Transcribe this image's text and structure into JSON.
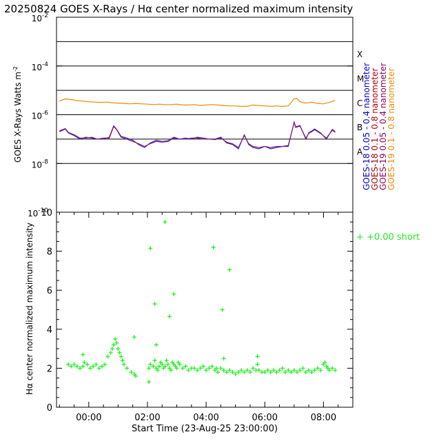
{
  "chart_data": [
    {
      "type": "line",
      "title": "20250824 GOES X-Rays / Hα center normalized maximum intensity",
      "ylabel": "GOES X-Rays Watts m",
      "ylabel_sup": "-2",
      "yscale": "log",
      "ylim": [
        1e-10,
        0.01
      ],
      "xlim": [
        -1.1,
        9.0
      ],
      "yticks": [
        {
          "label": "10",
          "sup": "-10",
          "value": 1e-10
        },
        {
          "label": "10",
          "sup": "-8",
          "value": 1e-08
        },
        {
          "label": "10",
          "sup": "-6",
          "value": 1e-06
        },
        {
          "label": "10",
          "sup": "-4",
          "value": 0.0001
        },
        {
          "label": "10",
          "sup": "-2",
          "value": 0.01
        }
      ],
      "class_lines": [
        1e-07,
        1e-06,
        1e-05,
        0.0001,
        0.001,
        1e-08
      ],
      "class_labels": [
        {
          "label": "A",
          "value": 3.16e-08
        },
        {
          "label": "B",
          "value": 3.16e-07
        },
        {
          "label": "C",
          "value": 3.16e-06
        },
        {
          "label": "M",
          "value": 3.16e-05
        },
        {
          "label": "X",
          "value": 0.000316
        }
      ],
      "legend": [
        {
          "text": "GOES-18  0.05 - 0.4 nanometer",
          "color": "#0000cc"
        },
        {
          "text": "GOES-18  0.1 - 0.8 nanometer",
          "color": "#aa0000"
        },
        {
          "text": "GOES-19  0.05 - 0.4 nanometer",
          "color": "#880066"
        },
        {
          "text": "GOES-19  0.1 - 0.8 nanometer",
          "color": "#ee8800"
        }
      ],
      "series": [
        {
          "name": "GOES-19 0.1 - 0.8 nanometer",
          "color": "#ee8800",
          "x": [
            -1.0,
            -0.8,
            -0.6,
            -0.4,
            -0.2,
            0.0,
            0.2,
            0.4,
            0.6,
            0.8,
            1.0,
            1.2,
            1.4,
            1.6,
            1.8,
            2.0,
            2.2,
            2.4,
            2.6,
            2.8,
            3.0,
            3.2,
            3.4,
            3.6,
            3.8,
            4.0,
            4.2,
            4.4,
            4.6,
            4.8,
            5.0,
            5.2,
            5.4,
            5.6,
            5.8,
            6.0,
            6.2,
            6.4,
            6.6,
            6.8,
            7.0,
            7.1,
            7.2,
            7.4,
            7.6,
            7.8,
            8.0,
            8.2,
            8.4
          ],
          "y": [
            3.6e-06,
            4.5e-06,
            4.2e-06,
            3.8e-06,
            3.6e-06,
            3.4e-06,
            3.3e-06,
            3.2e-06,
            3.3e-06,
            3.1e-06,
            3e-06,
            2.9e-06,
            2.8e-06,
            2.9e-06,
            2.8e-06,
            2.7e-06,
            2.6e-06,
            2.7e-06,
            2.6e-06,
            2.6e-06,
            2.7e-06,
            2.5e-06,
            2.5e-06,
            2.6e-06,
            2.4e-06,
            2.5e-06,
            2.6e-06,
            2.5e-06,
            2.4e-06,
            2.3e-06,
            2.3e-06,
            2.2e-06,
            2.2e-06,
            2.5e-06,
            2.4e-06,
            2.3e-06,
            2.2e-06,
            2.3e-06,
            2.2e-06,
            2.3e-06,
            4.5e-06,
            4.6e-06,
            3.4e-06,
            3e-06,
            3.3e-06,
            2.9e-06,
            2.8e-06,
            3.2e-06,
            3.9e-06
          ]
        },
        {
          "name": "GOES-18 0.05 - 0.4 nanometer",
          "color": "#2222cc",
          "x": [
            -1.0,
            -0.8,
            -0.7,
            -0.5,
            -0.3,
            -0.1,
            0.1,
            0.3,
            0.5,
            0.7,
            0.85,
            0.95,
            1.1,
            1.3,
            1.5,
            1.7,
            1.9,
            2.1,
            2.3,
            2.5,
            2.7,
            2.9,
            3.1,
            3.3,
            3.5,
            3.7,
            3.9,
            4.1,
            4.3,
            4.5,
            4.7,
            4.9,
            5.1,
            5.3,
            5.45,
            5.6,
            5.8,
            6.0,
            6.2,
            6.4,
            6.6,
            6.8,
            7.0,
            7.05,
            7.2,
            7.4,
            7.5,
            7.7,
            7.9,
            8.1,
            8.3,
            8.4
          ],
          "y": [
            2e-07,
            2.6e-07,
            1.8e-07,
            1.4e-07,
            1e-07,
            1.2e-07,
            1.1e-07,
            1e-07,
            1e-07,
            1.2e-07,
            3.5e-07,
            2.5e-07,
            1.3e-07,
            1.1e-07,
            9e-08,
            6e-08,
            4.5e-08,
            7e-08,
            9e-08,
            8e-08,
            8.5e-08,
            1.2e-07,
            1e-07,
            1.1e-07,
            1e-07,
            1.2e-07,
            1.1e-07,
            1e-07,
            1e-07,
            1.2e-07,
            7e-08,
            6e-08,
            4e-08,
            1.5e-07,
            6e-08,
            4.5e-08,
            4e-08,
            5e-08,
            4e-08,
            4.5e-08,
            5e-08,
            5e-08,
            5e-07,
            3.2e-07,
            3.6e-07,
            1e-07,
            1.8e-07,
            2.6e-07,
            1.8e-07,
            1e-07,
            2.5e-07,
            2e-07
          ]
        },
        {
          "name": "GOES-18 0.1 - 0.8 nanometer",
          "color": "#8a1a6a",
          "x": [
            -1.0,
            -0.8,
            -0.7,
            -0.5,
            -0.3,
            -0.1,
            0.1,
            0.3,
            0.5,
            0.7,
            0.85,
            0.95,
            1.1,
            1.3,
            1.5,
            1.7,
            1.9,
            2.1,
            2.3,
            2.5,
            2.7,
            2.9,
            3.1,
            3.3,
            3.5,
            3.7,
            3.9,
            4.1,
            4.3,
            4.5,
            4.7,
            4.9,
            5.1,
            5.3,
            5.45,
            5.6,
            5.8,
            6.0,
            6.2,
            6.4,
            6.6,
            6.8,
            7.0,
            7.05,
            7.2,
            7.4,
            7.5,
            7.7,
            7.9,
            8.1,
            8.3,
            8.4
          ],
          "y": [
            2.2e-07,
            2.7e-07,
            1.9e-07,
            1.5e-07,
            1.1e-07,
            1.1e-07,
            1.2e-07,
            1e-07,
            1.1e-07,
            1.1e-07,
            3.3e-07,
            2.4e-07,
            1.2e-07,
            1e-07,
            8e-08,
            6.5e-08,
            5e-08,
            6.5e-08,
            8e-08,
            7.5e-08,
            8e-08,
            1.1e-07,
            1e-07,
            1e-07,
            1.1e-07,
            1.1e-07,
            1e-07,
            1e-07,
            9.5e-08,
            1.1e-07,
            7.5e-08,
            6.5e-08,
            4.5e-08,
            1.4e-07,
            6.5e-08,
            5e-08,
            4.5e-08,
            5e-08,
            4.5e-08,
            5e-08,
            5e-08,
            5.5e-08,
            4.8e-07,
            3e-07,
            3.4e-07,
            1.1e-07,
            1.7e-07,
            2.4e-07,
            1.7e-07,
            1.1e-07,
            2.3e-07,
            1.9e-07
          ]
        }
      ]
    },
    {
      "type": "scatter",
      "ylabel": "Hα center normalized maximum intensity",
      "xlabel": "Start Time (23-Aug-25 23:00:00)",
      "xlim": [
        -1.1,
        9.0
      ],
      "ylim": [
        0,
        10
      ],
      "yticks": [
        0,
        2,
        4,
        6,
        8,
        10
      ],
      "xticks": [
        {
          "label": "00:00",
          "value": 0
        },
        {
          "label": "02:00",
          "value": 2
        },
        {
          "label": "04:00",
          "value": 4
        },
        {
          "label": "06:00",
          "value": 6
        },
        {
          "label": "08:00",
          "value": 8
        }
      ],
      "marker": "+",
      "color": "#22ee22",
      "legend": [
        {
          "text": "+  +0.00 short",
          "color": "#22ee22"
        }
      ],
      "series": [
        {
          "x": [
            -0.7,
            -0.6,
            -0.5,
            -0.4,
            -0.3,
            -0.2,
            -0.15,
            -0.05,
            0.05,
            0.15,
            0.25,
            0.35,
            0.45,
            0.55,
            0.65,
            0.75,
            0.8,
            0.85,
            0.9,
            0.95,
            1.0,
            1.05,
            1.1,
            1.15,
            1.2,
            1.3,
            1.45,
            1.55,
            1.6,
            2.05,
            2.1,
            2.2,
            2.25,
            2.3,
            2.35,
            2.4,
            2.45,
            2.5,
            2.55,
            2.6,
            2.65,
            2.7,
            2.75,
            2.8,
            2.85,
            2.9,
            2.95,
            3.0,
            3.05,
            3.1,
            3.2,
            3.3,
            3.4,
            3.5,
            3.6,
            3.7,
            3.8,
            3.9,
            4.0,
            4.1,
            4.2,
            4.3,
            4.35,
            4.4,
            4.5,
            4.6,
            4.7,
            4.8,
            4.9,
            5.0,
            5.1,
            5.2,
            5.3,
            5.4,
            5.5,
            5.6,
            5.7,
            5.75,
            5.8,
            5.9,
            6.0,
            6.1,
            6.2,
            6.3,
            6.4,
            6.5,
            6.6,
            6.7,
            6.8,
            6.9,
            7.0,
            7.1,
            7.2,
            7.3,
            7.4,
            7.5,
            7.6,
            7.7,
            7.8,
            7.9,
            8.0,
            8.05,
            8.1,
            8.15,
            8.2,
            8.3,
            8.4,
            2.1,
            2.25,
            2.6,
            2.9,
            2.75,
            4.25,
            4.55,
            4.8,
            1.55,
            2.05,
            2.3,
            4.6,
            5.75,
            -0.2
          ],
          "y": [
            2.2,
            2.1,
            2.2,
            2.1,
            2.0,
            2.1,
            2.3,
            2.2,
            2.0,
            2.1,
            2.2,
            2.0,
            2.1,
            2.2,
            2.6,
            2.8,
            3.0,
            3.2,
            3.5,
            3.3,
            3.0,
            2.8,
            2.6,
            2.4,
            2.2,
            2.0,
            1.8,
            1.7,
            1.6,
            2.0,
            2.2,
            2.1,
            2.4,
            2.0,
            1.9,
            2.1,
            2.3,
            2.2,
            2.0,
            2.1,
            2.4,
            2.2,
            2.0,
            1.9,
            2.3,
            2.2,
            2.1,
            2.0,
            2.3,
            2.2,
            2.0,
            2.1,
            1.9,
            2.0,
            2.0,
            1.9,
            2.0,
            2.1,
            1.9,
            2.0,
            2.1,
            1.9,
            2.0,
            1.8,
            2.0,
            1.9,
            1.8,
            1.9,
            1.8,
            1.7,
            1.8,
            1.9,
            1.8,
            1.9,
            1.8,
            2.0,
            1.9,
            2.2,
            1.9,
            1.8,
            1.8,
            1.9,
            1.8,
            1.9,
            1.8,
            1.9,
            2.0,
            1.8,
            1.9,
            1.8,
            1.9,
            1.8,
            1.9,
            2.0,
            1.8,
            1.9,
            1.8,
            1.9,
            2.0,
            1.9,
            2.2,
            2.3,
            2.1,
            2.0,
            1.9,
            2.0,
            1.9,
            8.15,
            5.3,
            9.5,
            5.8,
            4.65,
            8.2,
            5.0,
            7.05,
            3.6,
            1.3,
            3.2,
            2.5,
            2.6,
            2.7
          ]
        }
      ]
    }
  ]
}
